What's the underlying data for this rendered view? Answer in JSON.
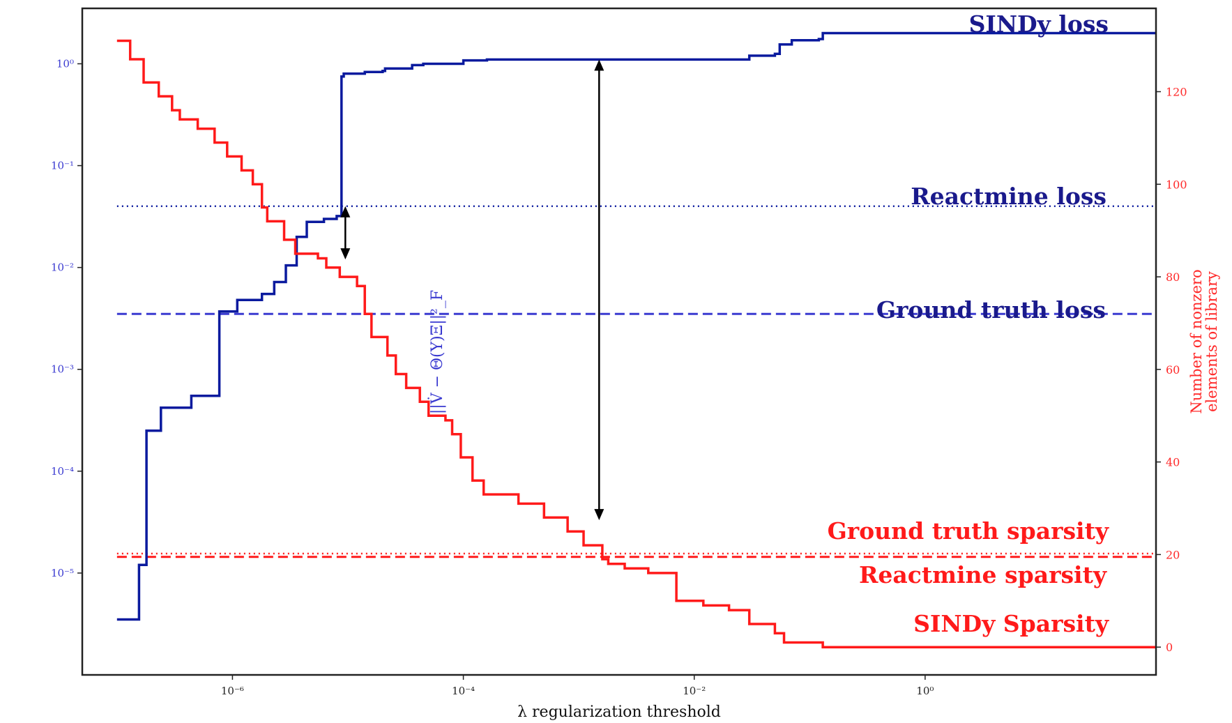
{
  "chart_data": {
    "type": "line",
    "xlabel": "λ regularization threshold",
    "ylabel_left": "||V̇ − Θ(Y)Ξ||²_F",
    "ylabel_right": [
      "Number of nonzero",
      "elements of library"
    ],
    "x_scale": "log",
    "x_ticks": [
      {
        "value": 1e-06,
        "label": "10⁻⁶"
      },
      {
        "value": 0.0001,
        "label": "10⁻⁴"
      },
      {
        "value": 0.01,
        "label": "10⁻²"
      },
      {
        "value": 1,
        "label": "10⁰"
      }
    ],
    "xlim": [
      5e-08,
      100
    ],
    "left_axis": {
      "scale": "log",
      "ylim": [
        1e-06,
        3.5
      ],
      "ticks": [
        {
          "value": 1,
          "label": "10⁰"
        },
        {
          "value": 0.1,
          "label": "10⁻¹"
        },
        {
          "value": 0.01,
          "label": "10⁻²"
        },
        {
          "value": 0.001,
          "label": "10⁻³"
        },
        {
          "value": 0.0001,
          "label": "10⁻⁴"
        },
        {
          "value": 1e-05,
          "label": "10⁻⁵"
        }
      ],
      "color": "#3a3ad0"
    },
    "right_axis": {
      "scale": "linear",
      "ylim": [
        -6,
        138
      ],
      "ticks": [
        {
          "value": 0,
          "label": "0"
        },
        {
          "value": 20,
          "label": "20"
        },
        {
          "value": 40,
          "label": "40"
        },
        {
          "value": 60,
          "label": "60"
        },
        {
          "value": 80,
          "label": "80"
        },
        {
          "value": 100,
          "label": "100"
        },
        {
          "value": 120,
          "label": "120"
        }
      ],
      "color": "#ff2a2a"
    },
    "series": [
      {
        "name": "SINDy loss",
        "axis": "left",
        "color": "#0a1a9e",
        "style": "step",
        "points": [
          [
            1e-07,
            3.5e-06
          ],
          [
            1.5e-07,
            3.5e-06
          ],
          [
            1.55e-07,
            1.2e-05
          ],
          [
            1.75e-07,
            1.2e-05
          ],
          [
            1.8e-07,
            0.00025
          ],
          [
            2.3e-07,
            0.00025
          ],
          [
            2.4e-07,
            0.00042
          ],
          [
            4.2e-07,
            0.00042
          ],
          [
            4.4e-07,
            0.00055
          ],
          [
            7.5e-07,
            0.00055
          ],
          [
            7.7e-07,
            0.0037
          ],
          [
            1.05e-06,
            0.0037
          ],
          [
            1.1e-06,
            0.0048
          ],
          [
            1.7e-06,
            0.0048
          ],
          [
            1.8e-06,
            0.0055
          ],
          [
            2.2e-06,
            0.0055
          ],
          [
            2.3e-06,
            0.0072
          ],
          [
            2.8e-06,
            0.0072
          ],
          [
            2.9e-06,
            0.0105
          ],
          [
            3.4e-06,
            0.0105
          ],
          [
            3.6e-06,
            0.02
          ],
          [
            4.2e-06,
            0.02
          ],
          [
            4.4e-06,
            0.028
          ],
          [
            6e-06,
            0.028
          ],
          [
            6.2e-06,
            0.03
          ],
          [
            7.5e-06,
            0.03
          ],
          [
            8e-06,
            0.032
          ],
          [
            8.6e-06,
            0.032
          ],
          [
            8.8e-06,
            0.75
          ],
          [
            9.2e-06,
            0.8
          ],
          [
            1.3e-05,
            0.8
          ],
          [
            1.4e-05,
            0.83
          ],
          [
            2e-05,
            0.85
          ],
          [
            2.1e-05,
            0.9
          ],
          [
            3.5e-05,
            0.9
          ],
          [
            3.6e-05,
            0.97
          ],
          [
            4.5e-05,
            1.0
          ],
          [
            8e-05,
            1.0
          ],
          [
            0.0001,
            1.08
          ],
          [
            0.00016,
            1.1
          ],
          [
            0.002,
            1.1
          ],
          [
            0.03,
            1.2
          ],
          [
            0.05,
            1.25
          ],
          [
            0.055,
            1.55
          ],
          [
            0.07,
            1.7
          ],
          [
            0.12,
            1.75
          ],
          [
            0.13,
            2.0
          ],
          [
            100,
            2.0
          ]
        ]
      },
      {
        "name": "SINDy Sparsity",
        "axis": "right",
        "color": "#ff1a1a",
        "style": "step",
        "points": [
          [
            1e-07,
            131
          ],
          [
            1.3e-07,
            127
          ],
          [
            1.7e-07,
            122
          ],
          [
            2.3e-07,
            119
          ],
          [
            3e-07,
            116
          ],
          [
            3.5e-07,
            114
          ],
          [
            5e-07,
            112
          ],
          [
            7e-07,
            109
          ],
          [
            9e-07,
            106
          ],
          [
            1.2e-06,
            103
          ],
          [
            1.5e-06,
            100
          ],
          [
            1.8e-06,
            95
          ],
          [
            2e-06,
            92
          ],
          [
            2.8e-06,
            88
          ],
          [
            3.5e-06,
            85
          ],
          [
            5e-06,
            85
          ],
          [
            5.5e-06,
            84
          ],
          [
            6.5e-06,
            82
          ],
          [
            8.5e-06,
            80
          ],
          [
            1.2e-05,
            78
          ],
          [
            1.4e-05,
            72
          ],
          [
            1.6e-05,
            67
          ],
          [
            2.2e-05,
            63
          ],
          [
            2.6e-05,
            59
          ],
          [
            3.2e-05,
            56
          ],
          [
            4.2e-05,
            53
          ],
          [
            5e-05,
            50
          ],
          [
            7e-05,
            49
          ],
          [
            8e-05,
            46
          ],
          [
            9.5e-05,
            41
          ],
          [
            0.00012,
            36
          ],
          [
            0.00015,
            33
          ],
          [
            0.0003,
            31
          ],
          [
            0.0005,
            28
          ],
          [
            0.0008,
            25
          ],
          [
            0.0011,
            22
          ],
          [
            0.0016,
            19
          ],
          [
            0.0018,
            18
          ],
          [
            0.0025,
            17
          ],
          [
            0.0035,
            17
          ],
          [
            0.004,
            16
          ],
          [
            0.007,
            10
          ],
          [
            0.012,
            9
          ],
          [
            0.02,
            8
          ],
          [
            0.03,
            5
          ],
          [
            0.05,
            3
          ],
          [
            0.06,
            1
          ],
          [
            0.12,
            1
          ],
          [
            0.13,
            0
          ],
          [
            100,
            0
          ]
        ]
      }
    ],
    "reference_lines": [
      {
        "label": "Reactmine loss",
        "axis": "left",
        "value": 0.04,
        "style": "dotted",
        "color": "#0a1a9e"
      },
      {
        "label": "Ground truth loss",
        "axis": "left",
        "value": 0.0035,
        "style": "dashed",
        "color": "#3a3ad0"
      },
      {
        "label": "Ground truth sparsity",
        "axis": "right",
        "value": 19.5,
        "style": "dashed",
        "color": "#ff1a1a"
      },
      {
        "label": "Reactmine sparsity",
        "axis": "right",
        "value": 20.2,
        "style": "dotted",
        "color": "#ff1a1a"
      }
    ],
    "double_arrows": [
      {
        "x": 9.5e-06,
        "from": 0.04,
        "to": 0.012
      },
      {
        "x": 0.0015,
        "from": 1.1,
        "to": 3.3e-05
      }
    ],
    "annotations": {
      "sindy_loss": "SINDy loss",
      "reactmine_loss": "Reactmine loss",
      "ground_truth_loss": "Ground truth loss",
      "ground_truth_sparsity": "Ground truth sparsity",
      "reactmine_sparsity": "Reactmine sparsity",
      "sindy_sparsity": "SINDy Sparsity"
    }
  }
}
